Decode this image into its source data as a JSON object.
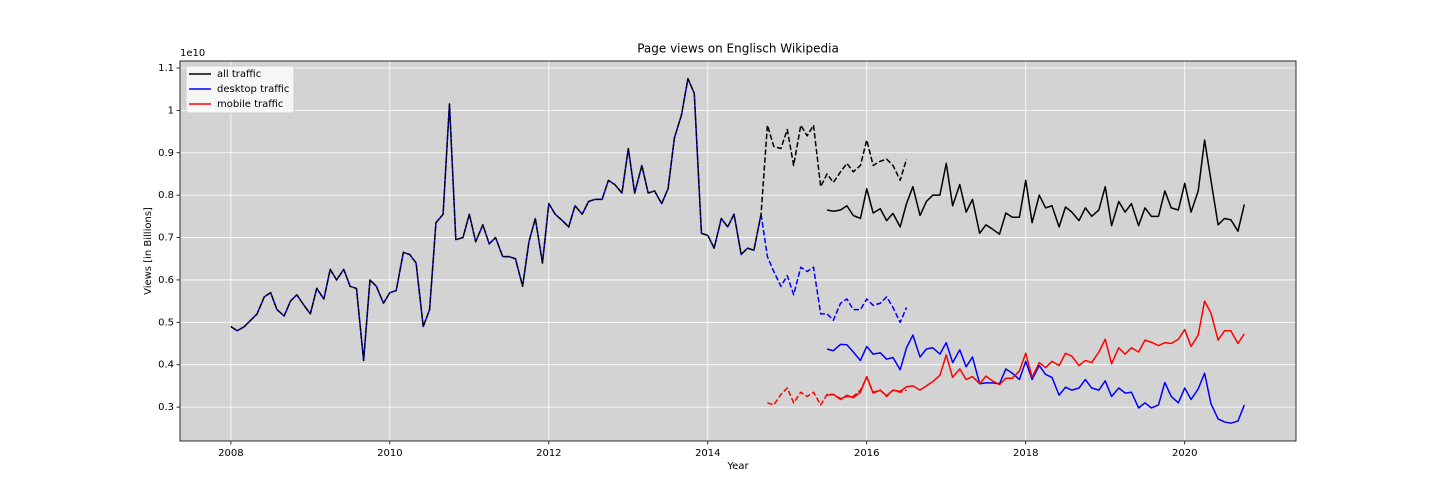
{
  "chart_data": {
    "type": "line",
    "title": "Page views on Englisch Wikipedia",
    "xlabel": "Year",
    "ylabel": "Views [in Billions]",
    "y_offset_label": "1e10",
    "xlim": [
      2007.36,
      2021.4
    ],
    "ylim": [
      0.22,
      1.1165
    ],
    "xticks": [
      2008,
      2010,
      2012,
      2014,
      2016,
      2018,
      2020
    ],
    "yticks": [
      0.3,
      0.4,
      0.5,
      0.6,
      0.7,
      0.8,
      0.9,
      1.0,
      1.1
    ],
    "grid": true,
    "grid_color": "#ffffff",
    "plot_background": "#d3d3d3",
    "legend": "upper left",
    "legacy_linestyle": "dashed",
    "x": [
      2008,
      2008.08,
      2008.17,
      2008.25,
      2008.33,
      2008.42,
      2008.5,
      2008.58,
      2008.67,
      2008.75,
      2008.83,
      2008.92,
      2009,
      2009.08,
      2009.17,
      2009.25,
      2009.33,
      2009.42,
      2009.5,
      2009.58,
      2009.67,
      2009.75,
      2009.83,
      2009.92,
      2010,
      2010.08,
      2010.17,
      2010.25,
      2010.33,
      2010.42,
      2010.5,
      2010.58,
      2010.67,
      2010.75,
      2010.83,
      2010.92,
      2011,
      2011.08,
      2011.17,
      2011.25,
      2011.33,
      2011.42,
      2011.5,
      2011.58,
      2011.67,
      2011.75,
      2011.83,
      2011.92,
      2012,
      2012.08,
      2012.17,
      2012.25,
      2012.33,
      2012.42,
      2012.5,
      2012.58,
      2012.67,
      2012.75,
      2012.83,
      2012.92,
      2013,
      2013.08,
      2013.17,
      2013.25,
      2013.33,
      2013.42,
      2013.5,
      2013.58,
      2013.67,
      2013.75,
      2013.83,
      2013.92,
      2014,
      2014.08,
      2014.17,
      2014.25,
      2014.33,
      2014.42,
      2014.5,
      2014.58,
      2014.67,
      2014.75,
      2014.83,
      2014.92,
      2015,
      2015.08,
      2015.17,
      2015.25,
      2015.33,
      2015.42,
      2015.5,
      2015.58,
      2015.67,
      2015.75,
      2015.83,
      2015.92,
      2016,
      2016.08,
      2016.17,
      2016.25,
      2016.33,
      2016.42,
      2016.5,
      2016.58,
      2016.67,
      2016.75,
      2016.83,
      2016.92,
      2017,
      2017.08,
      2017.17,
      2017.25,
      2017.33,
      2017.42,
      2017.5,
      2017.58,
      2017.67,
      2017.75,
      2017.83,
      2017.92,
      2018,
      2018.08,
      2018.17,
      2018.25,
      2018.33,
      2018.42,
      2018.5,
      2018.58,
      2018.67,
      2018.75,
      2018.83,
      2018.92,
      2019,
      2019.08,
      2019.17,
      2019.25,
      2019.33,
      2019.42,
      2019.5,
      2019.58,
      2019.67,
      2019.75,
      2019.83,
      2019.92,
      2020,
      2020.08,
      2020.17,
      2020.25,
      2020.33,
      2020.42,
      2020.5,
      2020.58,
      2020.67,
      2020.75
    ],
    "series": [
      {
        "name": "all traffic",
        "color": "#000000",
        "legacy_values": [
          0.49,
          0.48,
          0.49,
          0.505,
          0.52,
          0.56,
          0.57,
          0.53,
          0.515,
          0.55,
          0.565,
          0.54,
          0.52,
          0.58,
          0.555,
          0.625,
          0.6,
          0.625,
          0.585,
          0.58,
          0.41,
          0.6,
          0.585,
          0.545,
          0.57,
          0.575,
          0.665,
          0.66,
          0.64,
          0.49,
          0.53,
          0.735,
          0.755,
          1.015,
          0.695,
          0.7,
          0.755,
          0.69,
          0.73,
          0.685,
          0.7,
          0.655,
          0.655,
          0.65,
          0.585,
          0.69,
          0.745,
          0.64,
          0.78,
          0.755,
          0.74,
          0.725,
          0.775,
          0.755,
          0.785,
          0.79,
          0.79,
          0.835,
          0.825,
          0.805,
          0.91,
          0.805,
          0.87,
          0.805,
          0.81,
          0.78,
          0.815,
          0.935,
          0.99,
          1.075,
          1.04,
          0.71,
          0.705,
          0.675,
          0.745,
          0.725,
          0.755,
          0.66,
          0.675,
          0.67,
          0.755,
          0.965,
          0.915,
          0.91,
          0.955,
          0.87,
          0.965,
          0.94,
          0.965,
          0.82,
          0.85,
          0.83,
          0.855,
          0.875,
          0.855,
          0.87,
          0.93,
          0.87,
          0.88,
          0.885,
          0.87,
          0.835,
          0.885,
          null,
          null,
          null,
          null,
          null,
          null,
          null,
          null,
          null,
          null,
          null,
          null,
          null,
          null,
          null,
          null,
          null,
          null,
          null,
          null,
          null,
          null,
          null,
          null,
          null,
          null,
          null,
          null,
          null,
          null,
          null,
          null,
          null,
          null,
          null,
          null,
          null,
          null,
          null,
          null,
          null,
          null,
          null,
          null,
          null,
          null,
          null,
          null,
          null,
          null,
          null
        ],
        "values": [
          null,
          null,
          null,
          null,
          null,
          null,
          null,
          null,
          null,
          null,
          null,
          null,
          null,
          null,
          null,
          null,
          null,
          null,
          null,
          null,
          null,
          null,
          null,
          null,
          null,
          null,
          null,
          null,
          null,
          null,
          null,
          null,
          null,
          null,
          null,
          null,
          null,
          null,
          null,
          null,
          null,
          null,
          null,
          null,
          null,
          null,
          null,
          null,
          null,
          null,
          null,
          null,
          null,
          null,
          null,
          null,
          null,
          null,
          null,
          null,
          null,
          null,
          null,
          null,
          null,
          null,
          null,
          null,
          null,
          null,
          null,
          null,
          null,
          null,
          null,
          null,
          null,
          null,
          null,
          null,
          null,
          null,
          null,
          null,
          null,
          null,
          null,
          null,
          null,
          null,
          0.765,
          0.762,
          0.765,
          0.775,
          0.752,
          0.745,
          0.815,
          0.758,
          0.768,
          0.74,
          0.757,
          0.725,
          0.78,
          0.82,
          0.752,
          0.785,
          0.8,
          0.8,
          0.875,
          0.775,
          0.825,
          0.76,
          0.79,
          0.71,
          0.73,
          0.72,
          0.708,
          0.758,
          0.748,
          0.748,
          0.835,
          0.735,
          0.8,
          0.77,
          0.775,
          0.725,
          0.772,
          0.76,
          0.74,
          0.77,
          0.75,
          0.765,
          0.82,
          0.728,
          0.785,
          0.76,
          0.78,
          0.728,
          0.77,
          0.75,
          0.75,
          0.81,
          0.77,
          0.765,
          0.828,
          0.76,
          0.81,
          0.93,
          0.835,
          0.73,
          0.745,
          0.742,
          0.715,
          0.778
        ]
      },
      {
        "name": "desktop traffic",
        "color": "#0000ff",
        "legacy_values": [
          0.49,
          0.48,
          0.49,
          0.505,
          0.52,
          0.56,
          0.57,
          0.53,
          0.515,
          0.55,
          0.565,
          0.54,
          0.52,
          0.58,
          0.555,
          0.625,
          0.6,
          0.625,
          0.585,
          0.58,
          0.41,
          0.6,
          0.585,
          0.545,
          0.57,
          0.575,
          0.665,
          0.66,
          0.64,
          0.49,
          0.53,
          0.735,
          0.755,
          1.015,
          0.695,
          0.7,
          0.755,
          0.69,
          0.73,
          0.685,
          0.7,
          0.655,
          0.655,
          0.65,
          0.585,
          0.69,
          0.745,
          0.64,
          0.78,
          0.755,
          0.74,
          0.725,
          0.775,
          0.755,
          0.785,
          0.79,
          0.79,
          0.835,
          0.825,
          0.805,
          0.91,
          0.805,
          0.87,
          0.805,
          0.81,
          0.78,
          0.815,
          0.935,
          0.99,
          1.075,
          1.04,
          0.71,
          0.705,
          0.675,
          0.745,
          0.725,
          0.755,
          0.66,
          0.675,
          0.67,
          0.755,
          0.655,
          0.62,
          0.585,
          0.61,
          0.565,
          0.63,
          0.62,
          0.63,
          0.52,
          0.52,
          0.505,
          0.545,
          0.555,
          0.53,
          0.53,
          0.555,
          0.54,
          0.545,
          0.56,
          0.535,
          0.5,
          0.535,
          null,
          null,
          null,
          null,
          null,
          null,
          null,
          null,
          null,
          null,
          null,
          null,
          null,
          null,
          null,
          null,
          null,
          null,
          null,
          null,
          null,
          null,
          null,
          null,
          null,
          null,
          null,
          null,
          null,
          null,
          null,
          null,
          null,
          null,
          null,
          null,
          null,
          null,
          null,
          null,
          null,
          null,
          null,
          null,
          null,
          null,
          null,
          null,
          null,
          null,
          null
        ],
        "values": [
          null,
          null,
          null,
          null,
          null,
          null,
          null,
          null,
          null,
          null,
          null,
          null,
          null,
          null,
          null,
          null,
          null,
          null,
          null,
          null,
          null,
          null,
          null,
          null,
          null,
          null,
          null,
          null,
          null,
          null,
          null,
          null,
          null,
          null,
          null,
          null,
          null,
          null,
          null,
          null,
          null,
          null,
          null,
          null,
          null,
          null,
          null,
          null,
          null,
          null,
          null,
          null,
          null,
          null,
          null,
          null,
          null,
          null,
          null,
          null,
          null,
          null,
          null,
          null,
          null,
          null,
          null,
          null,
          null,
          null,
          null,
          null,
          null,
          null,
          null,
          null,
          null,
          null,
          null,
          null,
          null,
          null,
          null,
          null,
          null,
          null,
          null,
          null,
          null,
          null,
          0.437,
          0.433,
          0.448,
          0.447,
          0.43,
          0.41,
          0.443,
          0.425,
          0.428,
          0.413,
          0.417,
          0.388,
          0.44,
          0.47,
          0.418,
          0.437,
          0.44,
          0.425,
          0.452,
          0.405,
          0.435,
          0.395,
          0.418,
          0.355,
          0.357,
          0.357,
          0.355,
          0.39,
          0.38,
          0.365,
          0.408,
          0.365,
          0.398,
          0.377,
          0.37,
          0.328,
          0.347,
          0.34,
          0.345,
          0.365,
          0.345,
          0.34,
          0.362,
          0.325,
          0.345,
          0.333,
          0.335,
          0.298,
          0.31,
          0.298,
          0.305,
          0.358,
          0.325,
          0.31,
          0.345,
          0.318,
          0.343,
          0.38,
          0.308,
          0.272,
          0.265,
          0.262,
          0.267,
          0.305
        ]
      },
      {
        "name": "mobile traffic",
        "color": "#ff0000",
        "legacy_values": [
          null,
          null,
          null,
          null,
          null,
          null,
          null,
          null,
          null,
          null,
          null,
          null,
          null,
          null,
          null,
          null,
          null,
          null,
          null,
          null,
          null,
          null,
          null,
          null,
          null,
          null,
          null,
          null,
          null,
          null,
          null,
          null,
          null,
          null,
          null,
          null,
          null,
          null,
          null,
          null,
          null,
          null,
          null,
          null,
          null,
          null,
          null,
          null,
          null,
          null,
          null,
          null,
          null,
          null,
          null,
          null,
          null,
          null,
          null,
          null,
          null,
          null,
          null,
          null,
          null,
          null,
          null,
          null,
          null,
          null,
          null,
          null,
          null,
          null,
          null,
          null,
          null,
          null,
          null,
          null,
          null,
          0.31,
          0.305,
          0.33,
          0.345,
          0.31,
          0.335,
          0.325,
          0.335,
          0.305,
          0.33,
          0.33,
          0.32,
          0.325,
          0.325,
          0.34,
          0.37,
          0.335,
          0.34,
          0.325,
          0.34,
          0.335,
          0.34,
          null,
          null,
          null,
          null,
          null,
          null,
          null,
          null,
          null,
          null,
          null,
          null,
          null,
          null,
          null,
          null,
          null,
          null,
          null,
          null,
          null,
          null,
          null,
          null,
          null,
          null,
          null,
          null,
          null,
          null,
          null,
          null,
          null,
          null,
          null,
          null,
          null,
          null,
          null,
          null,
          null,
          null,
          null,
          null,
          null,
          null,
          null,
          null,
          null,
          null,
          null
        ],
        "values": [
          null,
          null,
          null,
          null,
          null,
          null,
          null,
          null,
          null,
          null,
          null,
          null,
          null,
          null,
          null,
          null,
          null,
          null,
          null,
          null,
          null,
          null,
          null,
          null,
          null,
          null,
          null,
          null,
          null,
          null,
          null,
          null,
          null,
          null,
          null,
          null,
          null,
          null,
          null,
          null,
          null,
          null,
          null,
          null,
          null,
          null,
          null,
          null,
          null,
          null,
          null,
          null,
          null,
          null,
          null,
          null,
          null,
          null,
          null,
          null,
          null,
          null,
          null,
          null,
          null,
          null,
          null,
          null,
          null,
          null,
          null,
          null,
          null,
          null,
          null,
          null,
          null,
          null,
          null,
          null,
          null,
          null,
          null,
          null,
          null,
          null,
          null,
          null,
          null,
          null,
          0.328,
          0.33,
          0.318,
          0.328,
          0.322,
          0.335,
          0.372,
          0.333,
          0.34,
          0.327,
          0.34,
          0.337,
          0.348,
          0.35,
          0.34,
          0.35,
          0.36,
          0.375,
          0.423,
          0.37,
          0.39,
          0.365,
          0.372,
          0.355,
          0.373,
          0.362,
          0.353,
          0.368,
          0.368,
          0.385,
          0.427,
          0.37,
          0.405,
          0.393,
          0.408,
          0.398,
          0.427,
          0.42,
          0.398,
          0.41,
          0.405,
          0.43,
          0.46,
          0.402,
          0.44,
          0.425,
          0.44,
          0.43,
          0.458,
          0.453,
          0.445,
          0.452,
          0.45,
          0.46,
          0.483,
          0.443,
          0.47,
          0.55,
          0.522,
          0.458,
          0.48,
          0.48,
          0.45,
          0.473
        ]
      }
    ]
  }
}
